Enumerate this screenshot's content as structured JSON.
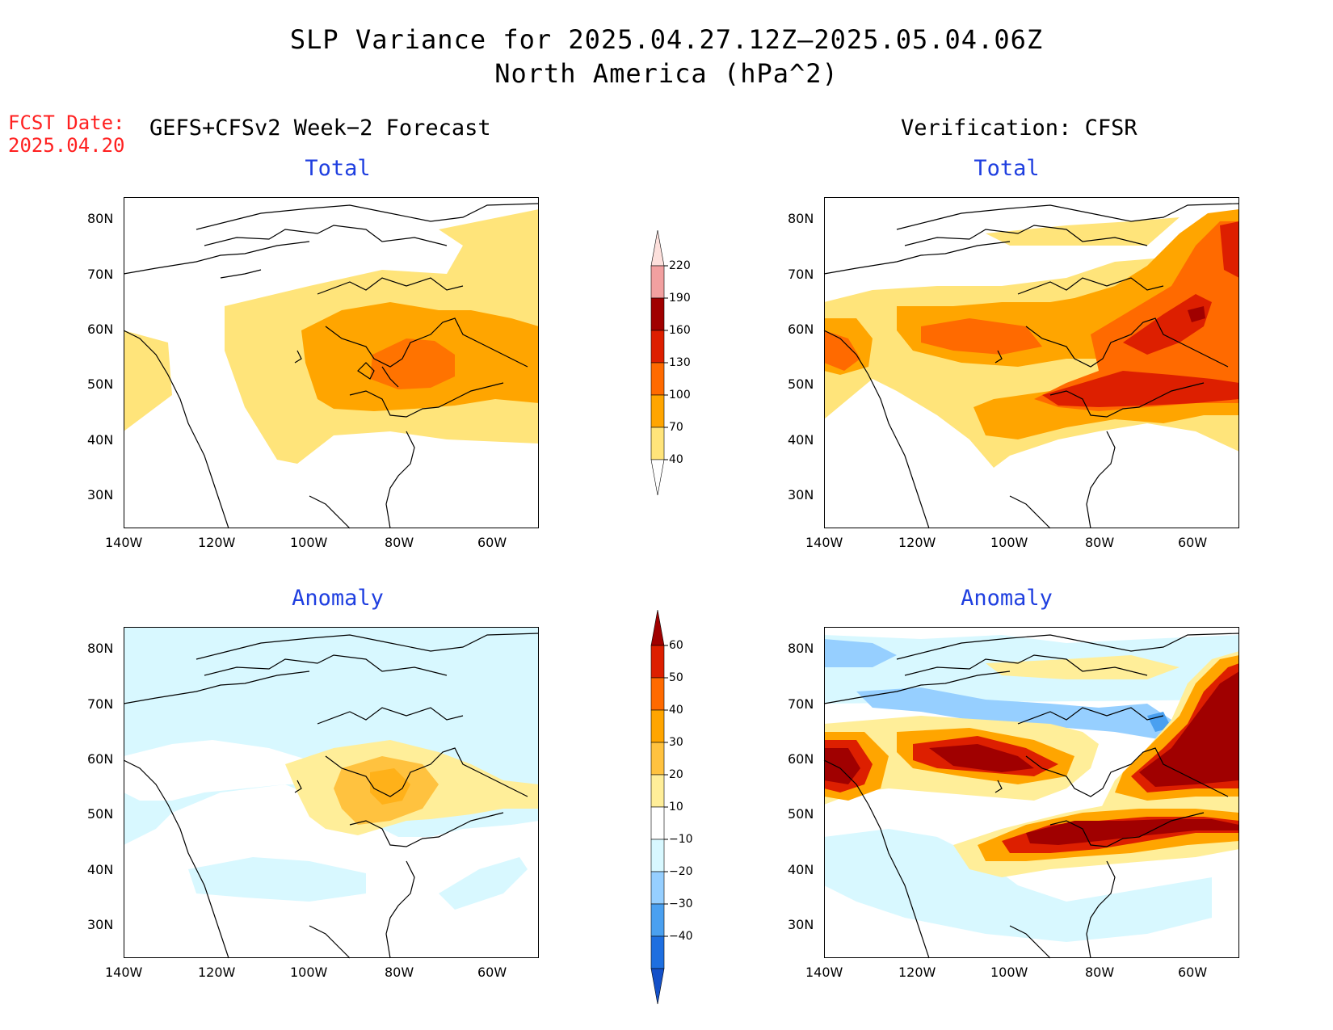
{
  "title": {
    "line1": "SLP Variance for 2025.04.27.12Z–2025.05.04.06Z",
    "line2": "North America (hPa^2)"
  },
  "fcst": {
    "label": "FCST Date:",
    "date": "2025.04.20"
  },
  "columns": {
    "left": "GEFS+CFSv2 Week−2 Forecast",
    "right": "Verification: CFSR"
  },
  "panels": {
    "total": "Total",
    "anomaly": "Anomaly"
  },
  "axes": {
    "lat_labels": [
      "80N",
      "70N",
      "60N",
      "50N",
      "40N",
      "30N"
    ],
    "lon_labels": [
      "140W",
      "120W",
      "100W",
      "80W",
      "60W"
    ]
  },
  "colorbars": {
    "total": {
      "labels": [
        "220",
        "190",
        "160",
        "130",
        "100",
        "70",
        "40"
      ],
      "colors": [
        "#fde0dc",
        "#f2a0a0",
        "#a00000",
        "#dd1f00",
        "#ff6a00",
        "#ffa500",
        "#ffe47a"
      ]
    },
    "anomaly": {
      "labels": [
        "60",
        "50",
        "40",
        "30",
        "20",
        "10",
        "−10",
        "−20",
        "−30",
        "−40"
      ],
      "colors": [
        "#a00000",
        "#dd1f00",
        "#ff6a00",
        "#ffa500",
        "#ffc23f",
        "#ffee99",
        "#ffffff",
        "#d8f8ff",
        "#96cfff",
        "#4aa0f0",
        "#1e6fe0",
        "#1450c8"
      ]
    }
  },
  "colors": {
    "title_blue": "#1f3fe0",
    "fcst_red": "#ff2020"
  }
}
